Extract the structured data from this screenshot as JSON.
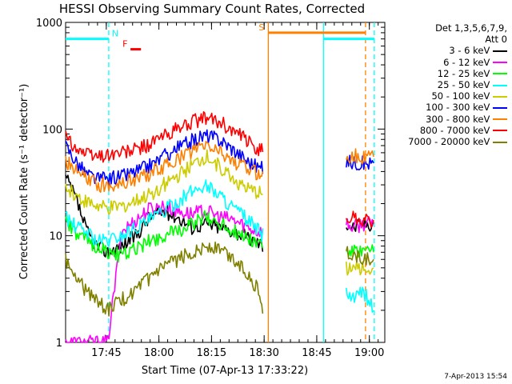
{
  "chart_data": {
    "type": "line",
    "title": "HESSI Observing Summary Count Rates, Corrected",
    "xlabel": "Start Time (07-Apr-13 17:33:22)",
    "ylabel": "Corrected Count Rate (s⁻¹ detector⁻¹)",
    "y_scale": "log",
    "ylim": [
      1,
      1000
    ],
    "xlim_minutes_after_17_33_22": [
      0,
      91
    ],
    "x_ticks": [
      {
        "label": "17:45",
        "t": 11.6
      },
      {
        "label": "18:00",
        "t": 26.6
      },
      {
        "label": "18:15",
        "t": 41.6
      },
      {
        "label": "18:30",
        "t": 56.6
      },
      {
        "label": "18:45",
        "t": 71.6
      },
      {
        "label": "19:00",
        "t": 86.6
      }
    ],
    "y_ticks": [
      {
        "label": "1",
        "v": 1
      },
      {
        "label": "10",
        "v": 10
      },
      {
        "label": "100",
        "v": 100
      },
      {
        "label": "1000",
        "v": 1000
      }
    ],
    "legend_header": [
      "Det 1,3,5,6,7,9,",
      "Att 0"
    ],
    "legend_placement": "right",
    "series": [
      {
        "name": "3 - 6 keV",
        "color": "#000000",
        "points": [
          [
            0,
            35
          ],
          [
            3,
            22
          ],
          [
            6,
            11
          ],
          [
            9,
            8
          ],
          [
            12,
            7
          ],
          [
            16,
            8
          ],
          [
            20,
            10
          ],
          [
            24,
            15
          ],
          [
            28,
            17
          ],
          [
            32,
            15
          ],
          [
            36,
            12
          ],
          [
            40,
            13
          ],
          [
            44,
            12
          ],
          [
            48,
            11
          ],
          [
            52,
            9.5
          ],
          [
            55,
            8.5
          ],
          [
            56.5,
            8
          ],
          [
            75,
            null
          ],
          [
            80,
            13
          ],
          [
            82,
            12
          ],
          [
            85,
            13
          ],
          [
            87.8,
            13
          ]
        ]
      },
      {
        "name": "6 - 12 keV",
        "color": "#ff00ff",
        "points": [
          [
            0,
            1
          ],
          [
            3,
            1
          ],
          [
            6,
            1
          ],
          [
            9,
            1
          ],
          [
            12,
            1
          ],
          [
            16,
            11
          ],
          [
            20,
            14
          ],
          [
            24,
            18
          ],
          [
            28,
            19
          ],
          [
            32,
            17
          ],
          [
            36,
            16
          ],
          [
            40,
            17
          ],
          [
            44,
            15
          ],
          [
            48,
            14
          ],
          [
            52,
            12
          ],
          [
            55,
            11
          ],
          [
            56.5,
            11
          ],
          [
            75,
            null
          ],
          [
            80,
            13
          ],
          [
            82,
            12
          ],
          [
            85,
            13
          ],
          [
            87.8,
            13
          ]
        ]
      },
      {
        "name": "12 - 25 keV",
        "color": "#00ff00",
        "points": [
          [
            0,
            14
          ],
          [
            3,
            10
          ],
          [
            6,
            9
          ],
          [
            9,
            8
          ],
          [
            12,
            7
          ],
          [
            16,
            6.5
          ],
          [
            20,
            7.5
          ],
          [
            24,
            9
          ],
          [
            28,
            10
          ],
          [
            32,
            11
          ],
          [
            36,
            13
          ],
          [
            40,
            15
          ],
          [
            44,
            13
          ],
          [
            48,
            11
          ],
          [
            52,
            9.5
          ],
          [
            55,
            8.5
          ],
          [
            56.5,
            8
          ],
          [
            75,
            null
          ],
          [
            80,
            7
          ],
          [
            82,
            7
          ],
          [
            85,
            7
          ],
          [
            87.8,
            7
          ]
        ]
      },
      {
        "name": "25 - 50 keV",
        "color": "#00ffff",
        "points": [
          [
            0,
            15
          ],
          [
            3,
            12
          ],
          [
            6,
            11
          ],
          [
            9,
            9
          ],
          [
            12,
            9
          ],
          [
            16,
            10
          ],
          [
            20,
            12
          ],
          [
            24,
            14
          ],
          [
            28,
            17
          ],
          [
            32,
            21
          ],
          [
            36,
            26
          ],
          [
            40,
            30
          ],
          [
            44,
            24
          ],
          [
            48,
            18
          ],
          [
            52,
            14
          ],
          [
            55,
            11
          ],
          [
            56.5,
            10
          ],
          [
            75,
            null
          ],
          [
            80,
            3
          ],
          [
            82,
            2.5
          ],
          [
            85,
            3
          ],
          [
            87.8,
            2
          ]
        ]
      },
      {
        "name": "50 - 100 keV",
        "color": "#cccc00",
        "points": [
          [
            0,
            28
          ],
          [
            3,
            24
          ],
          [
            6,
            21
          ],
          [
            9,
            19
          ],
          [
            12,
            18
          ],
          [
            16,
            19
          ],
          [
            20,
            21
          ],
          [
            24,
            24
          ],
          [
            28,
            30
          ],
          [
            32,
            36
          ],
          [
            36,
            45
          ],
          [
            40,
            55
          ],
          [
            44,
            45
          ],
          [
            48,
            34
          ],
          [
            52,
            27
          ],
          [
            55,
            25
          ],
          [
            56.5,
            24
          ],
          [
            75,
            null
          ],
          [
            80,
            5
          ],
          [
            82,
            5
          ],
          [
            85,
            5
          ],
          [
            87.8,
            5
          ]
        ]
      },
      {
        "name": "100 - 300 keV",
        "color": "#0000ff",
        "points": [
          [
            0,
            70
          ],
          [
            3,
            50
          ],
          [
            6,
            38
          ],
          [
            9,
            34
          ],
          [
            12,
            34
          ],
          [
            16,
            36
          ],
          [
            20,
            40
          ],
          [
            24,
            46
          ],
          [
            28,
            55
          ],
          [
            32,
            66
          ],
          [
            36,
            78
          ],
          [
            40,
            88
          ],
          [
            44,
            80
          ],
          [
            48,
            64
          ],
          [
            52,
            50
          ],
          [
            55,
            44
          ],
          [
            56.5,
            42
          ],
          [
            75,
            null
          ],
          [
            80,
            50
          ],
          [
            82,
            49
          ],
          [
            85,
            48
          ],
          [
            87.8,
            48
          ]
        ]
      },
      {
        "name": "300 - 800 keV",
        "color": "#ff8000",
        "points": [
          [
            0,
            50
          ],
          [
            3,
            40
          ],
          [
            6,
            34
          ],
          [
            9,
            30
          ],
          [
            12,
            30
          ],
          [
            16,
            31
          ],
          [
            20,
            34
          ],
          [
            24,
            38
          ],
          [
            28,
            44
          ],
          [
            32,
            52
          ],
          [
            36,
            62
          ],
          [
            40,
            70
          ],
          [
            44,
            62
          ],
          [
            48,
            50
          ],
          [
            52,
            42
          ],
          [
            55,
            38
          ],
          [
            56.5,
            36
          ],
          [
            75,
            null
          ],
          [
            80,
            56
          ],
          [
            82,
            56
          ],
          [
            85,
            55
          ],
          [
            87.8,
            55
          ]
        ]
      },
      {
        "name": "800 - 7000 keV",
        "color": "#ff0000",
        "points": [
          [
            0,
            85
          ],
          [
            3,
            68
          ],
          [
            6,
            58
          ],
          [
            9,
            56
          ],
          [
            12,
            58
          ],
          [
            16,
            60
          ],
          [
            20,
            64
          ],
          [
            24,
            72
          ],
          [
            28,
            86
          ],
          [
            32,
            100
          ],
          [
            36,
            116
          ],
          [
            40,
            126
          ],
          [
            44,
            116
          ],
          [
            48,
            94
          ],
          [
            52,
            76
          ],
          [
            55,
            66
          ],
          [
            56.5,
            62
          ],
          [
            75,
            null
          ],
          [
            80,
            15
          ],
          [
            82,
            15
          ],
          [
            85,
            14
          ],
          [
            87.8,
            14
          ]
        ]
      },
      {
        "name": "7000 - 20000 keV",
        "color": "#808000",
        "points": [
          [
            0,
            6
          ],
          [
            3,
            4
          ],
          [
            6,
            3
          ],
          [
            9,
            2.5
          ],
          [
            12,
            2
          ],
          [
            16,
            2.5
          ],
          [
            20,
            3
          ],
          [
            24,
            4
          ],
          [
            28,
            5
          ],
          [
            32,
            6
          ],
          [
            36,
            7
          ],
          [
            40,
            8
          ],
          [
            44,
            7.5
          ],
          [
            48,
            6
          ],
          [
            52,
            4.5
          ],
          [
            55,
            3
          ],
          [
            56.5,
            2
          ],
          [
            75,
            null
          ],
          [
            80,
            7
          ],
          [
            82,
            6.5
          ],
          [
            85,
            6
          ],
          [
            87.8,
            6
          ]
        ]
      }
    ],
    "annotations": [
      {
        "label": "N",
        "color": "#00ffff",
        "t_start": 0,
        "t_end": 12.3,
        "level": 700,
        "marker_t": 12.3
      },
      {
        "label": "F",
        "color": "#ff0000",
        "t_start": 18.5,
        "t_end": 21.5,
        "level": 560
      },
      {
        "label": "S",
        "color": "#ff8000",
        "t_start": 57.8,
        "t_end": 85.5,
        "level": 800
      },
      {
        "label": "",
        "color": "#00ffff",
        "t_start": 73.5,
        "t_end": 88,
        "level": 700
      }
    ],
    "vertical_markers": [
      {
        "t": 12.3,
        "color": "#00ffff",
        "style": "dashed"
      },
      {
        "t": 57.8,
        "color": "#ff8000",
        "style": "solid"
      },
      {
        "t": 73.5,
        "color": "#00ffff",
        "style": "solid"
      },
      {
        "t": 85.5,
        "color": "#ff8000",
        "style": "dashed"
      },
      {
        "t": 88,
        "color": "#00ffff",
        "style": "dashed"
      }
    ]
  },
  "timestamp": "7-Apr-2013 15:54"
}
